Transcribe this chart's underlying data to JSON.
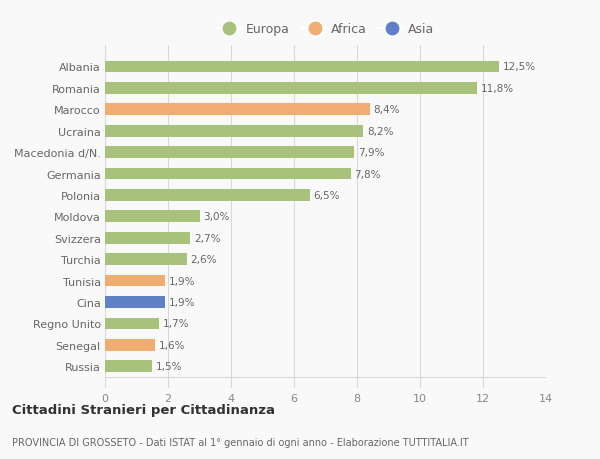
{
  "categories": [
    "Russia",
    "Senegal",
    "Regno Unito",
    "Cina",
    "Tunisia",
    "Turchia",
    "Svizzera",
    "Moldova",
    "Polonia",
    "Germania",
    "Macedonia d/N.",
    "Ucraina",
    "Marocco",
    "Romania",
    "Albania"
  ],
  "values": [
    1.5,
    1.6,
    1.7,
    1.9,
    1.9,
    2.6,
    2.7,
    3.0,
    6.5,
    7.8,
    7.9,
    8.2,
    8.4,
    11.8,
    12.5
  ],
  "labels": [
    "1,5%",
    "1,6%",
    "1,7%",
    "1,9%",
    "1,9%",
    "2,6%",
    "2,7%",
    "3,0%",
    "6,5%",
    "7,8%",
    "7,9%",
    "8,2%",
    "8,4%",
    "11,8%",
    "12,5%"
  ],
  "continent": [
    "Europa",
    "Africa",
    "Europa",
    "Asia",
    "Africa",
    "Europa",
    "Europa",
    "Europa",
    "Europa",
    "Europa",
    "Europa",
    "Europa",
    "Africa",
    "Europa",
    "Europa"
  ],
  "colors": {
    "Europa": "#a8c27c",
    "Africa": "#f0ad72",
    "Asia": "#6080c8"
  },
  "xlim": [
    0,
    14
  ],
  "xticks": [
    0,
    2,
    4,
    6,
    8,
    10,
    12,
    14
  ],
  "title": "Cittadini Stranieri per Cittadinanza",
  "subtitle": "PROVINCIA DI GROSSETO - Dati ISTAT al 1° gennaio di ogni anno - Elaborazione TUTTITALIA.IT",
  "background_color": "#f9f9f9",
  "bar_height": 0.55,
  "grid_color": "#d8d8d8",
  "label_color": "#666666",
  "tick_color": "#888888"
}
